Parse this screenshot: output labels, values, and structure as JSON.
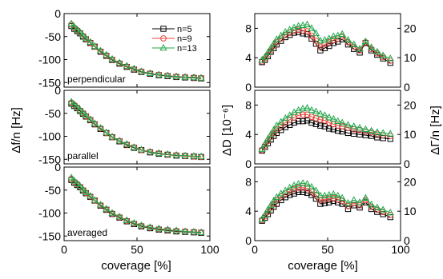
{
  "chart_data": {
    "type": "scatter",
    "x_axis": {
      "label": "coverage [%]",
      "lim": [
        0,
        100
      ],
      "ticks": [
        0,
        50,
        100
      ]
    },
    "legend": {
      "placement": "top-right of top-left panel",
      "entries": [
        {
          "name": "n=5",
          "color": "#000000",
          "marker": "square"
        },
        {
          "name": "n=9",
          "color": "#e8453c",
          "marker": "circle"
        },
        {
          "name": "n=13",
          "color": "#22a64a",
          "marker": "triangle"
        }
      ]
    },
    "left_column": {
      "ylabel": "Δf/n [Hz]",
      "ylim": [
        -160,
        0
      ],
      "yticks": [
        0,
        -50,
        -100,
        -150
      ],
      "panels": [
        {
          "label": "perpendicular",
          "x": [
            5,
            7,
            9,
            11,
            13,
            15,
            18,
            21,
            25,
            29,
            33,
            38,
            43,
            48,
            53,
            59,
            65,
            71,
            77,
            83,
            89,
            94
          ],
          "series": [
            {
              "name": "n=5",
              "values": [
                -27,
                -33,
                -38,
                -43,
                -50,
                -56,
                -64,
                -72,
                -83,
                -92,
                -101,
                -109,
                -116,
                -122,
                -127,
                -131,
                -134,
                -136,
                -138,
                -139,
                -140,
                -141
              ]
            },
            {
              "name": "n=9",
              "values": [
                -24,
                -31,
                -36,
                -42,
                -49,
                -55,
                -63,
                -72,
                -82,
                -91,
                -100,
                -108,
                -115,
                -121,
                -126,
                -130,
                -133,
                -135,
                -137,
                -138,
                -139,
                -140
              ]
            },
            {
              "name": "n=13",
              "values": [
                -22,
                -29,
                -35,
                -41,
                -48,
                -54,
                -62,
                -71,
                -81,
                -90,
                -99,
                -107,
                -114,
                -120,
                -126,
                -130,
                -133,
                -135,
                -137,
                -138,
                -139,
                -140
              ]
            }
          ]
        },
        {
          "label": "parallel",
          "x": [
            5,
            7,
            9,
            11,
            13,
            15,
            18,
            21,
            25,
            29,
            33,
            38,
            43,
            48,
            53,
            59,
            65,
            71,
            77,
            83,
            89,
            94
          ],
          "series": [
            {
              "name": "n=5",
              "values": [
                -29,
                -34,
                -39,
                -45,
                -51,
                -57,
                -65,
                -74,
                -84,
                -93,
                -102,
                -111,
                -119,
                -125,
                -130,
                -135,
                -138,
                -140,
                -142,
                -143,
                -144,
                -145
              ]
            },
            {
              "name": "n=9",
              "values": [
                -27,
                -32,
                -38,
                -44,
                -50,
                -56,
                -64,
                -73,
                -83,
                -93,
                -102,
                -110,
                -118,
                -124,
                -130,
                -134,
                -137,
                -140,
                -141,
                -143,
                -144,
                -145
              ]
            },
            {
              "name": "n=13",
              "values": [
                -25,
                -31,
                -37,
                -43,
                -49,
                -55,
                -63,
                -72,
                -82,
                -92,
                -101,
                -110,
                -117,
                -124,
                -129,
                -134,
                -137,
                -139,
                -141,
                -142,
                -143,
                -144
              ]
            }
          ]
        },
        {
          "label": "averaged",
          "x": [
            5,
            7,
            9,
            11,
            13,
            15,
            18,
            21,
            25,
            29,
            33,
            38,
            43,
            48,
            53,
            59,
            65,
            71,
            77,
            83,
            89,
            94
          ],
          "series": [
            {
              "name": "n=5",
              "values": [
                -28,
                -34,
                -39,
                -44,
                -51,
                -57,
                -65,
                -73,
                -84,
                -93,
                -102,
                -110,
                -118,
                -124,
                -129,
                -133,
                -136,
                -138,
                -140,
                -141,
                -142,
                -143
              ]
            },
            {
              "name": "n=9",
              "values": [
                -26,
                -32,
                -37,
                -43,
                -50,
                -56,
                -64,
                -73,
                -83,
                -92,
                -101,
                -109,
                -117,
                -123,
                -128,
                -132,
                -135,
                -137,
                -139,
                -140,
                -141,
                -142
              ]
            },
            {
              "name": "n=13",
              "values": [
                -23,
                -30,
                -36,
                -42,
                -49,
                -55,
                -63,
                -72,
                -82,
                -91,
                -100,
                -108,
                -116,
                -122,
                -127,
                -131,
                -134,
                -136,
                -138,
                -140,
                -141,
                -142
              ]
            }
          ]
        }
      ]
    },
    "right_column": {
      "ylabel_left": "ΔD [10⁻⁶]",
      "ylabel_right": "ΔΓ/n [Hz]",
      "ylim_left": [
        0,
        10
      ],
      "yticks_left": [
        0,
        4,
        8
      ],
      "ylim_right": [
        0,
        25
      ],
      "yticks_right": [
        0,
        10,
        20
      ],
      "panels": [
        {
          "x": [
            5,
            7,
            9,
            11,
            13,
            15,
            18,
            21,
            24,
            27,
            30,
            33,
            36,
            39,
            42,
            45,
            48,
            51,
            54,
            57,
            60,
            64,
            68,
            72,
            76,
            80,
            84,
            88,
            93
          ],
          "series": [
            {
              "name": "n=5",
              "values": [
                3.4,
                3.7,
                4.2,
                4.8,
                5.3,
                5.8,
                6.3,
                6.8,
                7.1,
                7.4,
                7.5,
                7.3,
                7.2,
                6.6,
                5.9,
                5.0,
                5.3,
                5.6,
                6.0,
                6.2,
                6.5,
                5.8,
                5.2,
                4.7,
                6.0,
                5.0,
                4.4,
                3.9,
                3.3
              ]
            },
            {
              "name": "n=9",
              "values": [
                3.5,
                3.9,
                4.4,
                5.0,
                5.6,
                6.1,
                6.6,
                7.1,
                7.4,
                7.7,
                7.8,
                7.7,
                7.6,
                7.0,
                6.3,
                5.5,
                5.8,
                6.1,
                6.4,
                6.6,
                6.9,
                6.1,
                5.5,
                5.0,
                6.1,
                5.2,
                4.6,
                4.1,
                3.6
              ]
            },
            {
              "name": "n=13",
              "values": [
                3.7,
                4.1,
                4.7,
                5.3,
                5.9,
                6.5,
                7.0,
                7.5,
                7.8,
                8.1,
                8.3,
                8.4,
                8.5,
                8.0,
                7.3,
                6.3,
                6.4,
                6.6,
                6.9,
                7.0,
                7.2,
                6.4,
                5.8,
                5.2,
                6.2,
                5.4,
                4.8,
                4.3,
                3.9
              ]
            }
          ]
        },
        {
          "x": [
            5,
            7,
            9,
            11,
            13,
            15,
            18,
            21,
            24,
            27,
            30,
            33,
            36,
            39,
            42,
            45,
            48,
            51,
            54,
            57,
            60,
            64,
            68,
            72,
            76,
            80,
            84,
            88,
            93
          ],
          "series": [
            {
              "name": "n=5",
              "values": [
                1.8,
                2.3,
                2.8,
                3.3,
                3.8,
                4.2,
                4.6,
                5.0,
                5.3,
                5.6,
                5.8,
                5.8,
                5.9,
                5.6,
                5.4,
                5.2,
                5.1,
                4.8,
                4.7,
                4.5,
                4.4,
                4.2,
                4.1,
                4.0,
                3.9,
                3.8,
                3.6,
                3.5,
                3.4
              ]
            },
            {
              "name": "n=9",
              "values": [
                1.9,
                2.5,
                3.1,
                3.7,
                4.2,
                4.7,
                5.2,
                5.6,
                6.0,
                6.3,
                6.6,
                6.7,
                6.7,
                6.4,
                6.2,
                6.0,
                5.9,
                5.6,
                5.4,
                5.2,
                5.1,
                4.9,
                4.7,
                4.6,
                4.4,
                4.3,
                4.1,
                3.9,
                3.8
              ]
            },
            {
              "name": "n=13",
              "values": [
                2.0,
                2.7,
                3.4,
                4.0,
                4.6,
                5.2,
                5.7,
                6.2,
                6.6,
                7.0,
                7.3,
                7.5,
                7.6,
                7.3,
                7.1,
                6.8,
                6.6,
                6.3,
                6.1,
                5.8,
                5.6,
                5.3,
                5.1,
                4.9,
                4.7,
                4.5,
                4.3,
                4.2,
                4.1
              ]
            }
          ]
        },
        {
          "x": [
            5,
            7,
            9,
            11,
            13,
            15,
            18,
            21,
            24,
            27,
            30,
            33,
            36,
            39,
            42,
            45,
            48,
            51,
            54,
            57,
            60,
            64,
            68,
            72,
            76,
            80,
            84,
            88,
            93
          ],
          "series": [
            {
              "name": "n=5",
              "values": [
                2.7,
                3.1,
                3.6,
                4.1,
                4.6,
                5.0,
                5.5,
                5.9,
                6.2,
                6.4,
                6.6,
                6.6,
                6.5,
                6.2,
                5.7,
                5.0,
                5.1,
                5.2,
                5.4,
                5.2,
                5.0,
                4.3,
                4.8,
                4.5,
                5.2,
                4.3,
                3.9,
                3.6,
                3.2
              ]
            },
            {
              "name": "n=9",
              "values": [
                2.8,
                3.3,
                3.9,
                4.5,
                5.0,
                5.5,
                6.0,
                6.4,
                6.7,
                7.0,
                7.2,
                7.2,
                7.1,
                6.7,
                6.2,
                5.5,
                5.6,
                5.7,
                5.8,
                5.6,
                5.4,
                4.7,
                5.1,
                4.8,
                5.5,
                4.6,
                4.2,
                3.9,
                3.5
              ]
            },
            {
              "name": "n=13",
              "values": [
                2.9,
                3.5,
                4.2,
                4.8,
                5.4,
                5.9,
                6.4,
                6.8,
                7.2,
                7.5,
                7.7,
                7.8,
                7.7,
                7.3,
                6.8,
                6.1,
                6.1,
                6.2,
                6.3,
                6.1,
                5.8,
                5.1,
                5.5,
                5.2,
                5.8,
                4.9,
                4.5,
                4.2,
                3.8
              ]
            }
          ]
        }
      ]
    }
  }
}
